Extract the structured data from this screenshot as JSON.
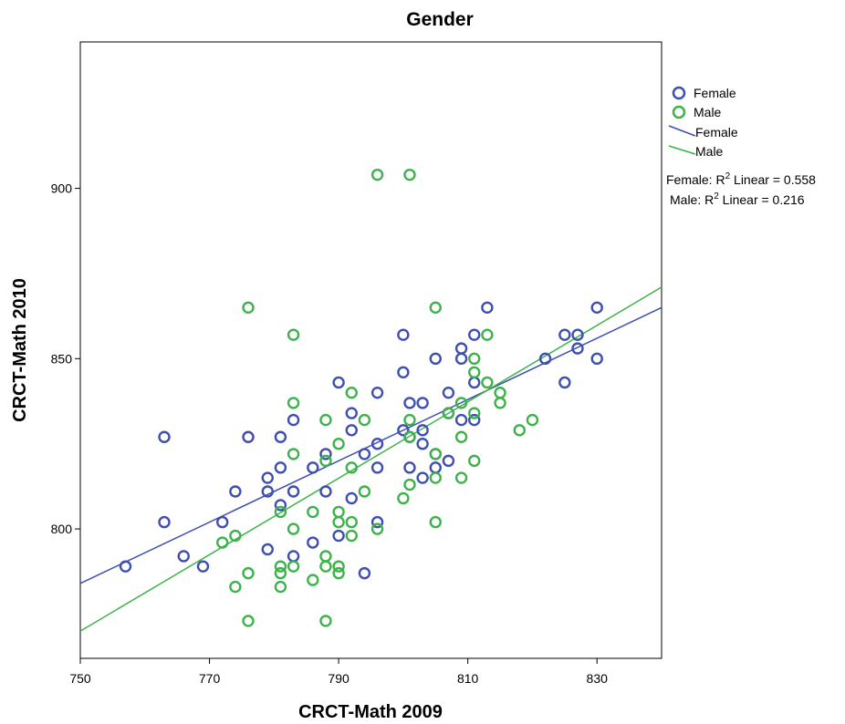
{
  "chart_data": {
    "type": "scatter",
    "title": "Gender",
    "xlabel": "CRCT-Math 2009",
    "ylabel": "CRCT-Math 2010",
    "xlim": [
      750,
      840
    ],
    "ylim": [
      762,
      943
    ],
    "xticks": [
      "750",
      "770",
      "790",
      "810",
      "830"
    ],
    "xtick_values": [
      750,
      770,
      790,
      810,
      830
    ],
    "yticks": [
      "800",
      "850",
      "900"
    ],
    "ytick_values": [
      800,
      850,
      900
    ],
    "grid": false,
    "legend_position": "right",
    "series": [
      {
        "name": "Female",
        "color": "#3e4fb1",
        "marker": "open-circle",
        "points": [
          [
            757,
            789
          ],
          [
            763,
            827
          ],
          [
            763,
            802
          ],
          [
            766,
            792
          ],
          [
            769,
            789
          ],
          [
            772,
            802
          ],
          [
            774,
            811
          ],
          [
            776,
            827
          ],
          [
            779,
            815
          ],
          [
            779,
            811
          ],
          [
            779,
            794
          ],
          [
            781,
            827
          ],
          [
            781,
            818
          ],
          [
            781,
            807
          ],
          [
            783,
            832
          ],
          [
            783,
            811
          ],
          [
            783,
            792
          ],
          [
            786,
            818
          ],
          [
            786,
            796
          ],
          [
            788,
            822
          ],
          [
            788,
            811
          ],
          [
            790,
            843
          ],
          [
            790,
            798
          ],
          [
            792,
            834
          ],
          [
            792,
            829
          ],
          [
            792,
            809
          ],
          [
            794,
            822
          ],
          [
            794,
            787
          ],
          [
            796,
            840
          ],
          [
            796,
            825
          ],
          [
            796,
            818
          ],
          [
            796,
            802
          ],
          [
            800,
            857
          ],
          [
            800,
            846
          ],
          [
            800,
            829
          ],
          [
            801,
            837
          ],
          [
            801,
            827
          ],
          [
            801,
            818
          ],
          [
            803,
            837
          ],
          [
            803,
            829
          ],
          [
            803,
            825
          ],
          [
            803,
            815
          ],
          [
            805,
            850
          ],
          [
            805,
            822
          ],
          [
            805,
            818
          ],
          [
            807,
            840
          ],
          [
            807,
            834
          ],
          [
            807,
            820
          ],
          [
            809,
            853
          ],
          [
            809,
            850
          ],
          [
            809,
            832
          ],
          [
            811,
            857
          ],
          [
            811,
            843
          ],
          [
            811,
            832
          ],
          [
            813,
            865
          ],
          [
            822,
            850
          ],
          [
            825,
            857
          ],
          [
            825,
            843
          ],
          [
            827,
            857
          ],
          [
            827,
            853
          ],
          [
            830,
            865
          ],
          [
            830,
            850
          ]
        ]
      },
      {
        "name": "Male",
        "color": "#3cb34a",
        "marker": "open-circle",
        "points": [
          [
            772,
            796
          ],
          [
            774,
            798
          ],
          [
            774,
            783
          ],
          [
            776,
            865
          ],
          [
            776,
            787
          ],
          [
            776,
            773
          ],
          [
            781,
            805
          ],
          [
            781,
            789
          ],
          [
            781,
            787
          ],
          [
            781,
            783
          ],
          [
            783,
            857
          ],
          [
            783,
            837
          ],
          [
            783,
            822
          ],
          [
            783,
            800
          ],
          [
            783,
            789
          ],
          [
            786,
            805
          ],
          [
            786,
            785
          ],
          [
            788,
            832
          ],
          [
            788,
            820
          ],
          [
            788,
            792
          ],
          [
            788,
            789
          ],
          [
            788,
            773
          ],
          [
            790,
            825
          ],
          [
            790,
            805
          ],
          [
            790,
            802
          ],
          [
            790,
            789
          ],
          [
            790,
            787
          ],
          [
            792,
            840
          ],
          [
            792,
            818
          ],
          [
            792,
            802
          ],
          [
            792,
            798
          ],
          [
            794,
            832
          ],
          [
            794,
            811
          ],
          [
            796,
            904
          ],
          [
            796,
            800
          ],
          [
            800,
            809
          ],
          [
            801,
            904
          ],
          [
            801,
            832
          ],
          [
            801,
            827
          ],
          [
            801,
            813
          ],
          [
            805,
            865
          ],
          [
            805,
            822
          ],
          [
            805,
            815
          ],
          [
            805,
            802
          ],
          [
            807,
            834
          ],
          [
            809,
            837
          ],
          [
            809,
            827
          ],
          [
            809,
            815
          ],
          [
            811,
            850
          ],
          [
            811,
            846
          ],
          [
            811,
            834
          ],
          [
            811,
            820
          ],
          [
            813,
            857
          ],
          [
            813,
            843
          ],
          [
            815,
            840
          ],
          [
            815,
            837
          ],
          [
            818,
            829
          ],
          [
            820,
            832
          ]
        ]
      }
    ],
    "fit_lines": [
      {
        "name": "Female",
        "color": "#3e4fb1",
        "x": [
          750,
          840
        ],
        "y": [
          784,
          865
        ]
      },
      {
        "name": "Male",
        "color": "#3cb34a",
        "x": [
          750,
          840
        ],
        "y": [
          770,
          871
        ]
      }
    ],
    "legend": {
      "markers": [
        {
          "label": "Female",
          "color": "#3e4fb1"
        },
        {
          "label": "Male",
          "color": "#3cb34a"
        }
      ],
      "lines": [
        {
          "label": "Female",
          "color": "#3e4fb1"
        },
        {
          "label": "Male",
          "color": "#3cb34a"
        }
      ]
    },
    "annotations": [
      {
        "prefix": "Female: R",
        "sup": "2",
        "suffix": " Linear = 0.558"
      },
      {
        "prefix": "Male: R",
        "sup": "2",
        "suffix": " Linear = 0.216"
      }
    ]
  }
}
